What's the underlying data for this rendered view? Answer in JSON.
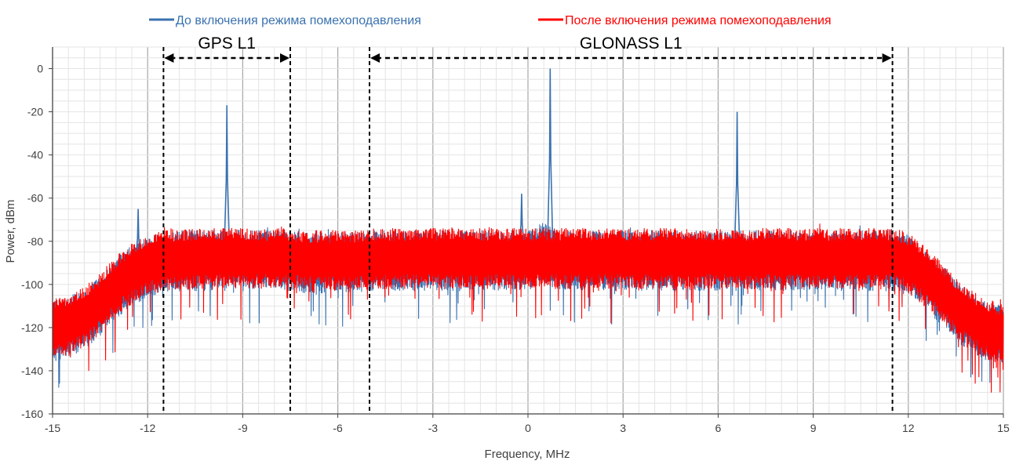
{
  "chart_data": {
    "type": "line",
    "xlabel": "Frequency, MHz",
    "ylabel": "Power, dBm",
    "xlim": [
      -15,
      15
    ],
    "ylim": [
      -160,
      10
    ],
    "xticks": [
      -15,
      -12,
      -9,
      -6,
      -3,
      0,
      3,
      6,
      9,
      12,
      15
    ],
    "yticks": [
      0,
      -20,
      -40,
      -60,
      -80,
      -100,
      -120,
      -140,
      -160
    ],
    "grid": true,
    "legend_position": "top",
    "series": [
      {
        "name": "До включения режима помехоподавления",
        "color": "#3a72b0",
        "x": [
          -15,
          -14.5,
          -14,
          -13.5,
          -13,
          -12.5,
          -12,
          -11.5,
          -11,
          -10.5,
          -10,
          -9.5,
          -9,
          -8.5,
          -8,
          -7.5,
          -7,
          -6.5,
          -6,
          -5.5,
          -5,
          -4.5,
          -4,
          -3.5,
          -3,
          -2.5,
          -2,
          -1.5,
          -1,
          -0.5,
          0,
          0.5,
          1,
          1.5,
          2,
          2.5,
          3,
          3.5,
          4,
          4.5,
          5,
          5.5,
          6,
          6.5,
          7,
          7.5,
          8,
          8.5,
          9,
          9.5,
          10,
          10.5,
          11,
          11.5,
          12,
          12.5,
          13,
          13.5,
          14,
          14.5,
          15
        ],
        "y": [
          -120,
          -118,
          -114,
          -108,
          -100,
          -94,
          -90,
          -88,
          -87,
          -87,
          -87,
          -86,
          -87,
          -87,
          -87,
          -87,
          -88,
          -88,
          -88,
          -88,
          -87,
          -87,
          -87,
          -87,
          -87,
          -87,
          -87,
          -87,
          -87,
          -87,
          -86,
          -83,
          -87,
          -87,
          -87,
          -87,
          -87,
          -87,
          -87,
          -87,
          -87,
          -87,
          -87,
          -87,
          -87,
          -87,
          -87,
          -87,
          -87,
          -87,
          -87,
          -87,
          -87,
          -87,
          -89,
          -95,
          -102,
          -110,
          -116,
          -120,
          -122
        ],
        "peaks": [
          {
            "x": -12.3,
            "y": -65
          },
          {
            "x": -9.5,
            "y": -17
          },
          {
            "x": -0.2,
            "y": -58
          },
          {
            "x": 0.7,
            "y": 0
          },
          {
            "x": 6.6,
            "y": -20
          }
        ]
      },
      {
        "name": "После включения режима помехоподавления",
        "color": "#ff0000",
        "x": [
          -15,
          -14.5,
          -14,
          -13.5,
          -13,
          -12.5,
          -12,
          -11.5,
          -11,
          -10.5,
          -10,
          -9.5,
          -9,
          -8.5,
          -8,
          -7.5,
          -7,
          -6.5,
          -6,
          -5.5,
          -5,
          -4.5,
          -4,
          -3.5,
          -3,
          -2.5,
          -2,
          -1.5,
          -1,
          -0.5,
          0,
          0.5,
          1,
          1.5,
          2,
          2.5,
          3,
          3.5,
          4,
          4.5,
          5,
          5.5,
          6,
          6.5,
          7,
          7.5,
          8,
          8.5,
          9,
          9.5,
          10,
          10.5,
          11,
          11.5,
          12,
          12.5,
          13,
          13.5,
          14,
          14.5,
          15
        ],
        "y": [
          -119,
          -117,
          -113,
          -107,
          -99,
          -93,
          -89,
          -87,
          -86,
          -86,
          -86,
          -86,
          -86,
          -86,
          -86,
          -86,
          -87,
          -87,
          -87,
          -87,
          -86,
          -86,
          -86,
          -86,
          -86,
          -86,
          -86,
          -86,
          -86,
          -86,
          -86,
          -86,
          -86,
          -86,
          -86,
          -86,
          -86,
          -86,
          -86,
          -86,
          -86,
          -86,
          -86,
          -86,
          -86,
          -86,
          -86,
          -86,
          -86,
          -86,
          -86,
          -86,
          -86,
          -86,
          -88,
          -94,
          -101,
          -109,
          -115,
          -119,
          -121
        ],
        "peaks": []
      }
    ],
    "annotations": [
      {
        "label": "GPS L1",
        "x_start": -11.5,
        "x_end": -7.5
      },
      {
        "label": "GLONASS L1",
        "x_start": -5,
        "x_end": 11.5
      }
    ]
  }
}
